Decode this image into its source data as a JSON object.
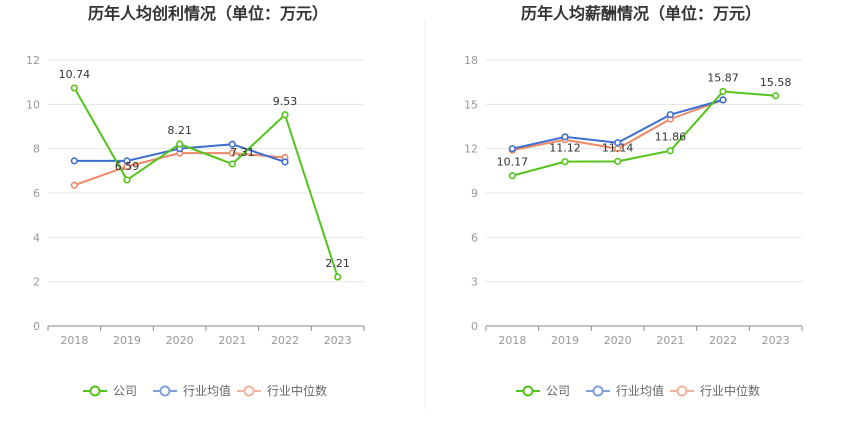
{
  "chart_data": [
    {
      "type": "line",
      "title": "历年人均创利情况（单位：万元）",
      "categories": [
        "2018",
        "2019",
        "2020",
        "2021",
        "2022",
        "2023"
      ],
      "ylim": [
        0,
        12
      ],
      "yticks": [
        "0",
        "2",
        "4",
        "6",
        "8",
        "10",
        "12"
      ],
      "grid": true,
      "legend_position": "bottom",
      "series": [
        {
          "name": "公司",
          "color": "#52c41a",
          "values": [
            10.74,
            6.59,
            8.21,
            7.31,
            9.53,
            2.21
          ],
          "labels": [
            "10.74",
            "6.59",
            "8.21",
            "7.31",
            "9.53",
            "2.21"
          ]
        },
        {
          "name": "行业均值",
          "color": "#3d6fd2",
          "values": [
            7.45,
            7.45,
            8.0,
            8.2,
            7.4,
            null
          ]
        },
        {
          "name": "行业中位数",
          "color": "#ee8866",
          "values": [
            6.35,
            7.2,
            7.8,
            7.8,
            7.6,
            null
          ]
        }
      ]
    },
    {
      "type": "line",
      "title": "历年人均薪酬情况（单位：万元）",
      "categories": [
        "2018",
        "2019",
        "2020",
        "2021",
        "2022",
        "2023"
      ],
      "ylim": [
        0,
        18
      ],
      "yticks": [
        "0",
        "3",
        "6",
        "9",
        "12",
        "15",
        "18"
      ],
      "grid": true,
      "legend_position": "bottom",
      "series": [
        {
          "name": "公司",
          "color": "#52c41a",
          "values": [
            10.17,
            11.12,
            11.14,
            11.86,
            15.87,
            15.58
          ],
          "labels": [
            "10.17",
            "11.12",
            "11.14",
            "11.86",
            "15.87",
            "15.58"
          ]
        },
        {
          "name": "行业均值",
          "color": "#3d6fd2",
          "values": [
            12.0,
            12.8,
            12.4,
            14.3,
            15.3,
            null
          ]
        },
        {
          "name": "行业中位数",
          "color": "#ee8866",
          "values": [
            11.9,
            12.6,
            12.0,
            14.0,
            15.3,
            null
          ]
        }
      ]
    }
  ],
  "legend": {
    "items": [
      {
        "name": "公司",
        "color": "#52c41a",
        "faded": false
      },
      {
        "name": "行业均值",
        "color": "#7f9fde",
        "faded": true
      },
      {
        "name": "行业中位数",
        "color": "#f2b49e",
        "faded": true
      }
    ]
  },
  "colors": {
    "divider": "#eeeeee"
  }
}
